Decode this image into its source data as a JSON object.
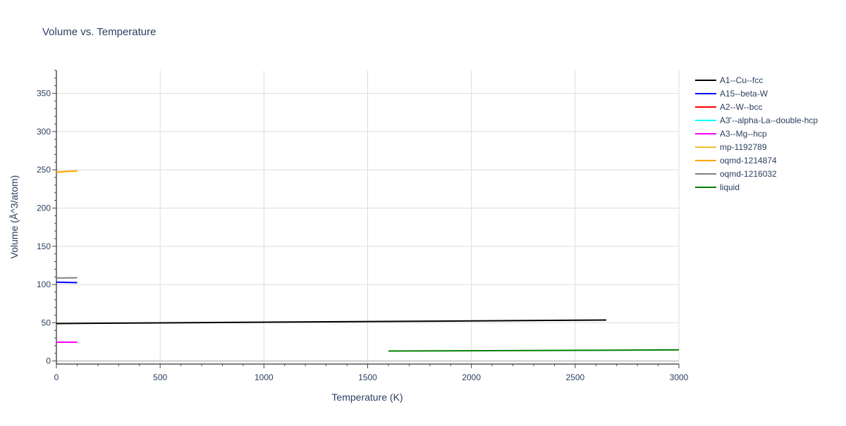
{
  "chart_data": {
    "type": "line",
    "title": "Volume vs. Temperature",
    "xlabel": "Temperature (K)",
    "ylabel": "Volume (Å^3/atom)",
    "xlim": [
      0,
      3000
    ],
    "ylim": [
      -4,
      380
    ],
    "xticks": [
      0,
      500,
      1000,
      1500,
      2000,
      2500,
      3000
    ],
    "yticks": [
      0,
      50,
      100,
      150,
      200,
      250,
      300,
      350
    ],
    "grid": true,
    "legend_position": "right",
    "series": [
      {
        "name": "A1--Cu--fcc",
        "color": "#000000",
        "x": [
          0,
          2650
        ],
        "y": [
          49,
          53.5
        ]
      },
      {
        "name": "A15--beta-W",
        "color": "#0000ff",
        "x": [
          0,
          100
        ],
        "y": [
          103,
          102.5
        ]
      },
      {
        "name": "A2--W--bcc",
        "color": "#ff0000",
        "x": [
          0,
          100
        ],
        "y": [
          24.5,
          24.5
        ]
      },
      {
        "name": "A3'--alpha-La--double-hcp",
        "color": "#00ffff",
        "x": [
          0,
          100
        ],
        "y": [
          24.5,
          24.5
        ]
      },
      {
        "name": "A3--Mg--hcp",
        "color": "#ff00ff",
        "x": [
          0,
          100
        ],
        "y": [
          24.5,
          24.5
        ]
      },
      {
        "name": "mp-1192789",
        "color": "#f0c030",
        "x": [
          0,
          100
        ],
        "y": [
          247,
          248.5
        ]
      },
      {
        "name": "oqmd-1214874",
        "color": "#ffa500",
        "x": [
          0,
          100
        ],
        "y": [
          247,
          248.5
        ]
      },
      {
        "name": "oqmd-1216032",
        "color": "#808080",
        "x": [
          0,
          100
        ],
        "y": [
          108.5,
          108.8
        ]
      },
      {
        "name": "liquid",
        "color": "#008000",
        "x": [
          1600,
          3000
        ],
        "y": [
          13,
          14.5
        ]
      }
    ]
  }
}
